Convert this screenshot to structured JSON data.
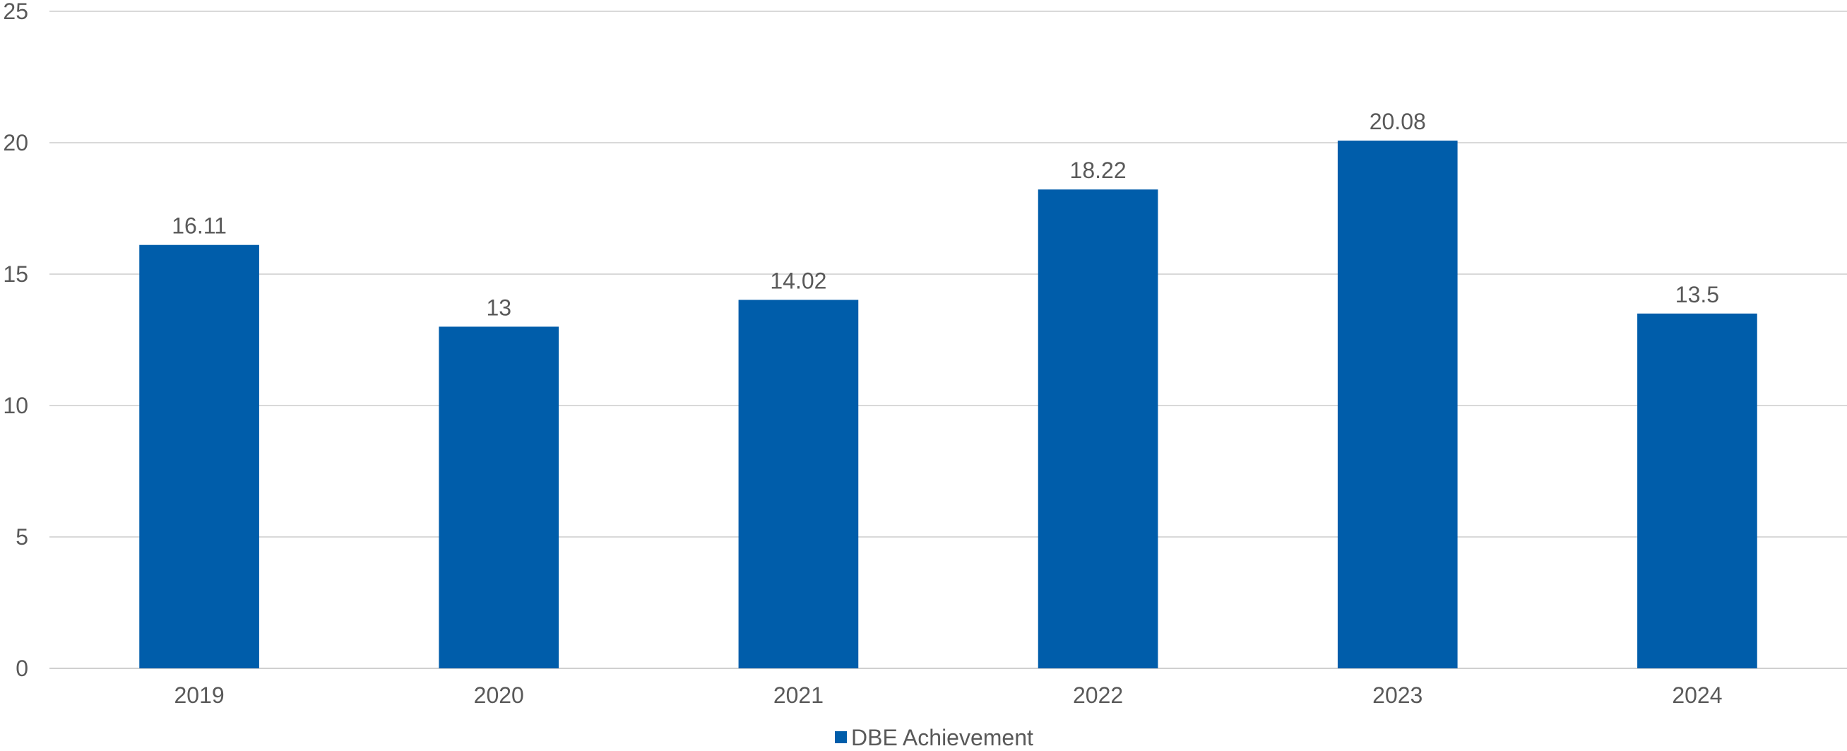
{
  "chart_data": {
    "type": "bar",
    "categories": [
      "2019",
      "2020",
      "2021",
      "2022",
      "2023",
      "2024"
    ],
    "series": [
      {
        "name": "DBE Achievement",
        "values": [
          16.11,
          13,
          14.02,
          18.22,
          20.08,
          13.5
        ],
        "color": "#005DAA"
      }
    ],
    "data_labels": [
      "16.11",
      "13",
      "14.02",
      "18.22",
      "20.08",
      "13.5"
    ],
    "yticks": [
      "0",
      "5",
      "10",
      "15",
      "20",
      "25"
    ],
    "ylim": [
      0,
      25
    ],
    "grid": true,
    "legend_position": "bottom"
  }
}
